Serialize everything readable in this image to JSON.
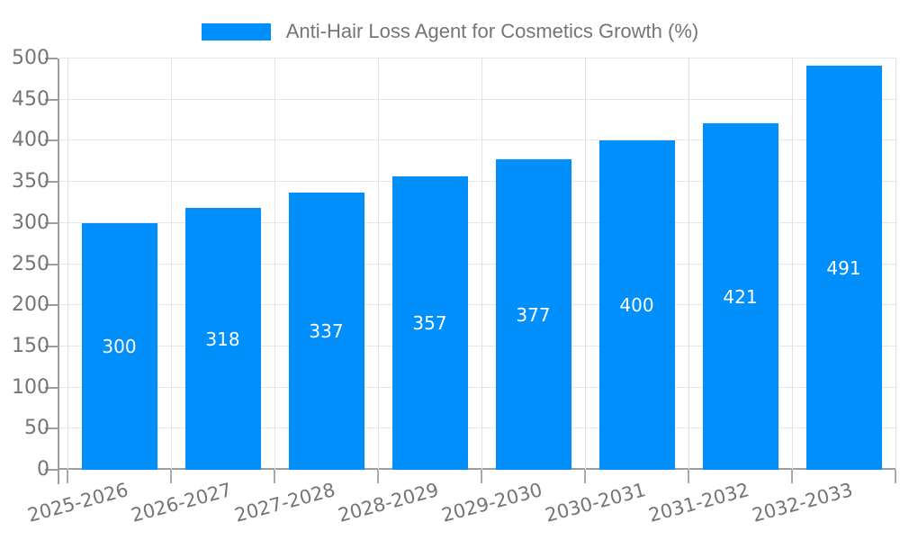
{
  "chart_data": {
    "type": "bar",
    "title": "",
    "categories": [
      "2025-2026",
      "2026-2027",
      "2027-2028",
      "2028-2029",
      "2029-2030",
      "2030-2031",
      "2031-2032",
      "2032-2033"
    ],
    "series": [
      {
        "name": "Anti-Hair Loss Agent for Cosmetics Growth (%)",
        "values": [
          300,
          318,
          337,
          357,
          377,
          400,
          421,
          491
        ]
      }
    ],
    "xlabel": "",
    "ylabel": "",
    "ylim": [
      0,
      500
    ],
    "yticks": [
      0,
      50,
      100,
      150,
      200,
      250,
      300,
      350,
      400,
      450,
      500
    ],
    "grid": true,
    "legend_position": "top-center",
    "value_labels": "inside-center"
  },
  "legend": {
    "swatch_icon": "series-color-swatch",
    "label": "Anti-Hair Loss Agent for Cosmetics Growth (%)"
  },
  "colors": {
    "bar": "#008FFB",
    "axis": "#9e9e9e",
    "grid": "#e6e6e6",
    "tick_label": "#757575",
    "value_label": "#ffffff",
    "background": "#ffffff"
  }
}
